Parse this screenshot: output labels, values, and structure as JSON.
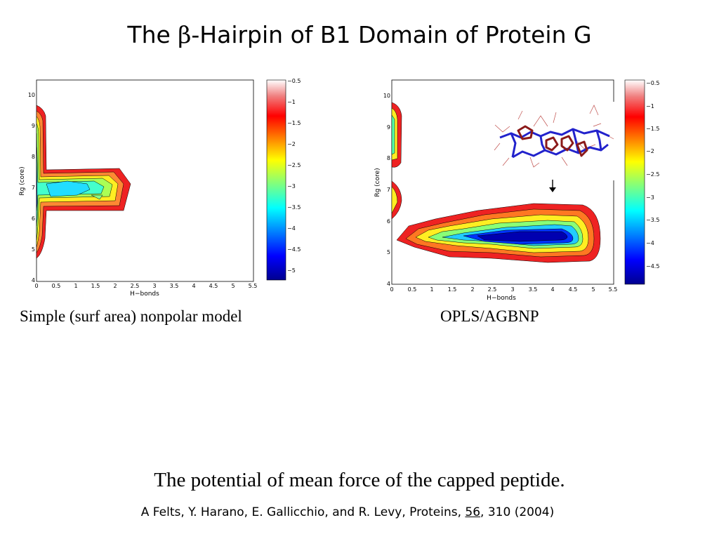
{
  "slide": {
    "title_prefix": "The ",
    "title_symbol": "β",
    "title_suffix": "-Hairpin of B1 Domain of Protein G",
    "left_caption": "Simple (surf area) nonpolar model",
    "right_caption": "OPLS/AGBNP",
    "bottom_caption": "The potential of mean force of the capped peptide.",
    "citation_prefix": "A Felts, Y. Harano, E. Gallicchio, and R. Levy, Proteins, ",
    "citation_volume": "56",
    "citation_suffix": ", 310 (2004)"
  },
  "chart_data": [
    {
      "type": "heatmap",
      "panel": "left",
      "xlabel": "H−bonds",
      "ylabel": "Rg (core)",
      "xlim": [
        0,
        5.5
      ],
      "ylim": [
        4,
        10.5
      ],
      "x_ticks": [
        "0",
        "0.5",
        "1",
        "1.5",
        "2",
        "2.5",
        "3",
        "3.5",
        "4",
        "4.5",
        "5",
        "5.5"
      ],
      "y_ticks": [
        "4",
        "5",
        "6",
        "7",
        "8",
        "9",
        "10"
      ],
      "colorbar_range": [
        -5.3,
        -0.5
      ],
      "colorbar_ticks": [
        "−0.5",
        "−1",
        "−1.5",
        "−2",
        "−2.5",
        "−3",
        "−3.5",
        "−4",
        "−4.5",
        "−5"
      ],
      "colormap": "jet (dark blue = low, white = high)"
    },
    {
      "type": "heatmap",
      "panel": "right",
      "xlabel": "H−bonds",
      "ylabel": "Rg (core)",
      "xlim": [
        0,
        5.5
      ],
      "ylim": [
        4,
        10.5
      ],
      "x_ticks": [
        "0",
        "0.5",
        "1",
        "1.5",
        "2",
        "2.5",
        "3",
        "3.5",
        "4",
        "4.5",
        "5",
        "5.5"
      ],
      "y_ticks": [
        "4",
        "5",
        "6",
        "7",
        "8",
        "9",
        "10"
      ],
      "colorbar_range": [
        -4.9,
        -0.4
      ],
      "colorbar_ticks": [
        "−0.5",
        "−1",
        "−1.5",
        "−2",
        "−2.5",
        "−3",
        "−3.5",
        "−4",
        "−4.5"
      ],
      "colormap": "jet (dark blue = low, white = high)"
    }
  ]
}
